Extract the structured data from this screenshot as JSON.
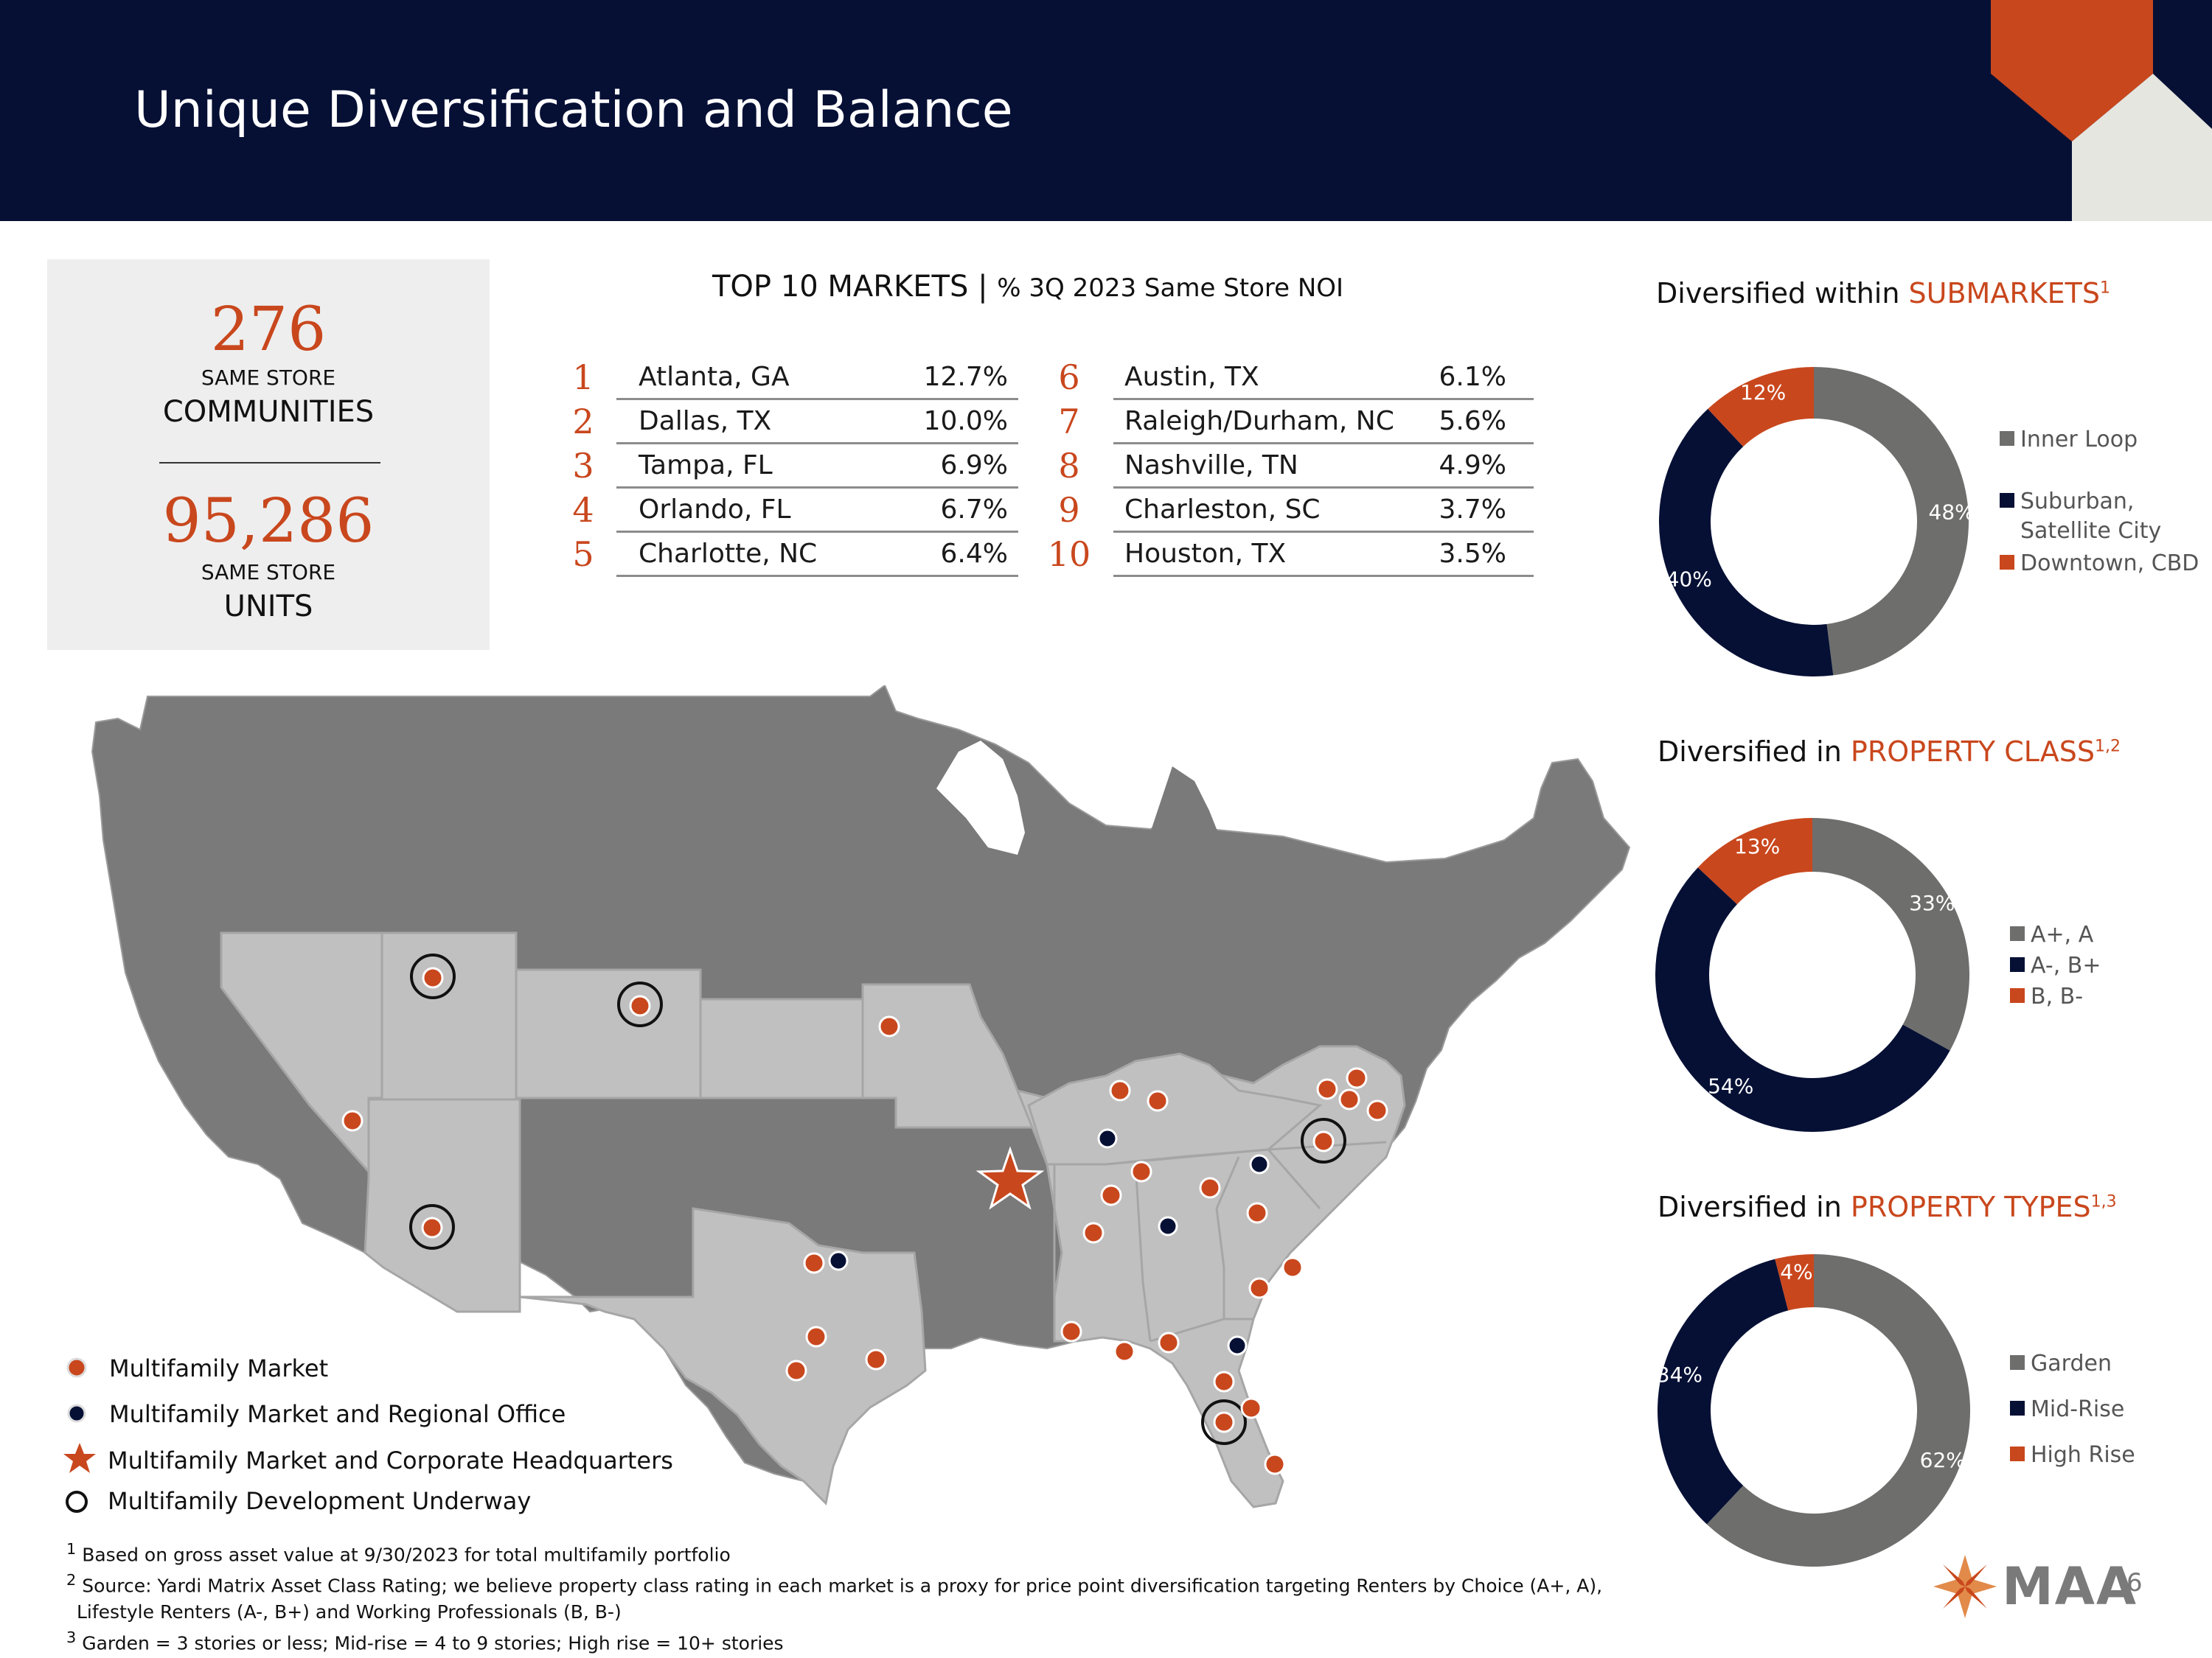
{
  "header": {
    "title": "Unique Diversification and Balance"
  },
  "colors": {
    "navy": "#061035",
    "orange": "#c9471d",
    "gray": "#6e6e6c",
    "light_gray": "#eeeeee"
  },
  "stats": {
    "communities_value": "276",
    "communities_caption": "SAME STORE",
    "communities_label": "COMMUNITIES",
    "units_value": "95,286",
    "units_caption": "SAME STORE",
    "units_label": "UNITS"
  },
  "top_markets": {
    "title": "TOP 10 MARKETS | ",
    "subtitle": "% 3Q 2023 Same Store NOI",
    "rows": [
      {
        "rank": "1",
        "name": "Atlanta, GA",
        "pct": "12.7%"
      },
      {
        "rank": "2",
        "name": "Dallas, TX",
        "pct": "10.0%"
      },
      {
        "rank": "3",
        "name": "Tampa, FL",
        "pct": "6.9%"
      },
      {
        "rank": "4",
        "name": "Orlando, FL",
        "pct": "6.7%"
      },
      {
        "rank": "5",
        "name": "Charlotte, NC",
        "pct": "6.4%"
      },
      {
        "rank": "6",
        "name": "Austin, TX",
        "pct": "6.1%"
      },
      {
        "rank": "7",
        "name": "Raleigh/Durham, NC",
        "pct": "5.6%"
      },
      {
        "rank": "8",
        "name": "Nashville, TN",
        "pct": "4.9%"
      },
      {
        "rank": "9",
        "name": "Charleston, SC",
        "pct": "3.7%"
      },
      {
        "rank": "10",
        "name": "Houston, TX",
        "pct": "3.5%"
      }
    ]
  },
  "submarkets": {
    "title_prefix": "Diversified within ",
    "title_accent": "SUBMARKETS",
    "title_sup": "1",
    "legend": [
      "Inner Loop",
      "Suburban,",
      "Satellite City",
      "Downtown, CBD"
    ]
  },
  "property_class": {
    "title_prefix": "Diversified in ",
    "title_accent": "PROPERTY CLASS",
    "title_sup": "1,2",
    "legend": [
      "A+, A",
      "A-, B+",
      "B, B-"
    ]
  },
  "property_types": {
    "title_prefix": "Diversified in ",
    "title_accent": "PROPERTY TYPES",
    "title_sup": "1,3",
    "legend": [
      "Garden",
      "Mid-Rise",
      "High Rise"
    ]
  },
  "chart_data": [
    {
      "type": "pie",
      "title": "Diversified within SUBMARKETS",
      "categories": [
        "Inner Loop",
        "Suburban, Satellite City",
        "Downtown, CBD"
      ],
      "values": [
        48,
        40,
        12
      ],
      "labels": [
        "48%",
        "40%",
        "12%"
      ],
      "colors": [
        "#6e6e6c",
        "#061035",
        "#c9471d"
      ],
      "legend": "right"
    },
    {
      "type": "pie",
      "title": "Diversified in PROPERTY CLASS",
      "categories": [
        "A+, A",
        "A-, B+",
        "B, B-"
      ],
      "values": [
        33,
        54,
        13
      ],
      "labels": [
        "33%",
        "54%",
        "13%"
      ],
      "colors": [
        "#6e6e6c",
        "#061035",
        "#c9471d"
      ],
      "legend": "right"
    },
    {
      "type": "pie",
      "title": "Diversified in PROPERTY TYPES",
      "categories": [
        "Garden",
        "Mid-Rise",
        "High Rise"
      ],
      "values": [
        62,
        34,
        4
      ],
      "labels": [
        "62%",
        "34%",
        "4%"
      ],
      "colors": [
        "#6e6e6c",
        "#061035",
        "#c9471d"
      ],
      "legend": "right"
    }
  ],
  "map_legend": {
    "market": "Multifamily Market",
    "regional_office": "Multifamily Market and Regional Office",
    "headquarters": "Multifamily Market and Corporate Headquarters",
    "development": "Multifamily Development Underway"
  },
  "footnotes": {
    "fn1_mark": "1",
    "fn1": " Based on gross asset value at 9/30/2023 for total multifamily portfolio",
    "fn2_mark": "2",
    "fn2a": "Source: Yardi Matrix Asset Class Rating; we believe property class rating in each market is a proxy for price point diversification targeting Renters by Choice (A+, A),",
    "fn2b": "Lifestyle Renters (A-, B+) and Working Professionals (B, B-)",
    "fn3_mark": "3",
    "fn3": " Garden = 3 stories or less; Mid-rise = 4 to 9 stories; High rise = 10+ stories"
  },
  "logo": {
    "text": "MAA"
  },
  "page_number": "6"
}
